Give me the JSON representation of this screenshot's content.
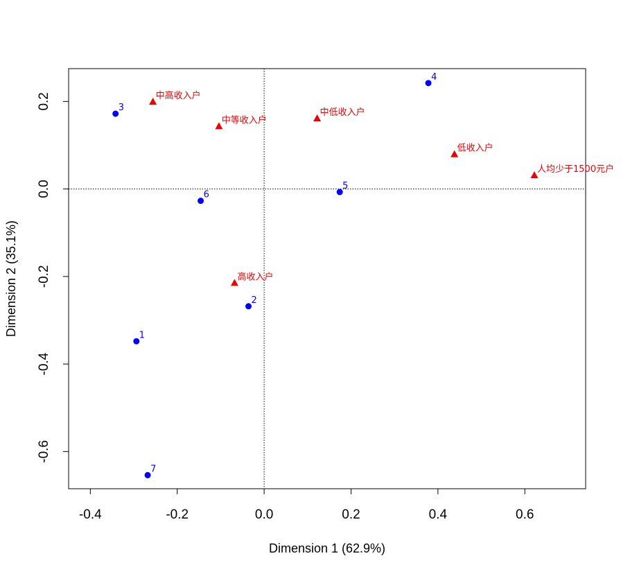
{
  "chart_data": {
    "type": "scatter",
    "xlabel": "Dimension 1 (62.9%)",
    "ylabel": "Dimension 2 (35.1%)",
    "xlim": [
      -0.45,
      0.74
    ],
    "ylim": [
      -0.685,
      0.275
    ],
    "x_ticks": [
      -0.4,
      -0.2,
      0.0,
      0.2,
      0.4,
      0.6
    ],
    "x_tick_labels": [
      "-0.4",
      "-0.2",
      "0.0",
      "0.2",
      "0.4",
      "0.6"
    ],
    "y_ticks": [
      -0.6,
      -0.4,
      -0.2,
      0.0,
      0.2
    ],
    "y_tick_labels": [
      "-0.6",
      "-0.4",
      "-0.2",
      "0.0",
      "0.2"
    ],
    "reference_lines": {
      "x": 0,
      "y": 0,
      "style": "dotted"
    },
    "grid": false,
    "series": [
      {
        "marker": "circle",
        "color": "#0000ff",
        "points": [
          {
            "label": "1",
            "x": -0.294,
            "y": -0.348
          },
          {
            "label": "2",
            "x": -0.036,
            "y": -0.268
          },
          {
            "label": "3",
            "x": -0.342,
            "y": 0.172
          },
          {
            "label": "4",
            "x": 0.378,
            "y": 0.242
          },
          {
            "label": "5",
            "x": 0.174,
            "y": -0.007
          },
          {
            "label": "6",
            "x": -0.146,
            "y": -0.027
          },
          {
            "label": "7",
            "x": -0.268,
            "y": -0.654
          }
        ]
      },
      {
        "marker": "triangle",
        "color": "#ee0000",
        "points": [
          {
            "label": "中高收入户",
            "x": -0.256,
            "y": 0.199
          },
          {
            "label": "中等收入户",
            "x": -0.104,
            "y": 0.143
          },
          {
            "label": "中低收入户",
            "x": 0.122,
            "y": 0.161
          },
          {
            "label": "低收入户",
            "x": 0.438,
            "y": 0.079
          },
          {
            "label": "人均少于1500元户",
            "x": 0.622,
            "y": 0.031
          },
          {
            "label": "高收入户",
            "x": -0.068,
            "y": -0.215
          }
        ]
      }
    ]
  }
}
